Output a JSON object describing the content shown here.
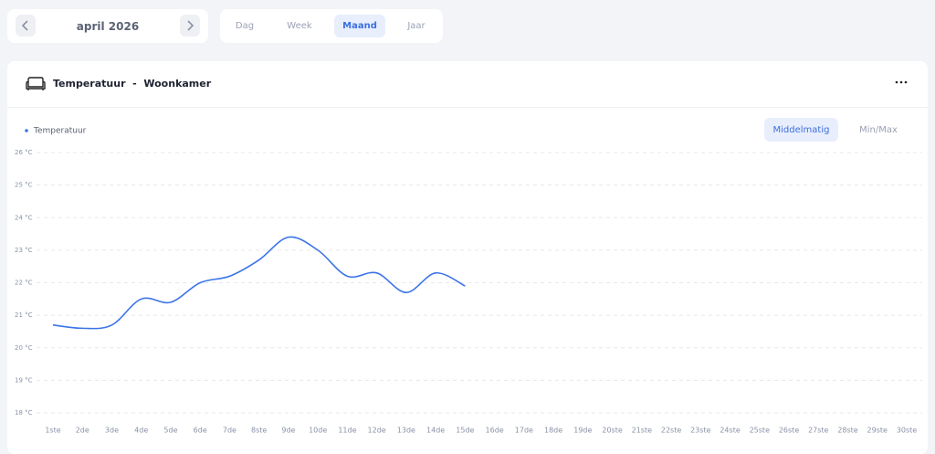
{
  "nav": {
    "month": "april 2026",
    "periods": [
      "Dag",
      "Week",
      "Maand",
      "Jaar"
    ]
  },
  "widget": {
    "title": "Temperatuur  -  Woonkamer",
    "modes": [
      "Middelmatig",
      "Min/Max"
    ]
  },
  "chart_data": {
    "type": "line",
    "categories": [
      "1ste",
      "2de",
      "3de",
      "4de",
      "5de",
      "6de",
      "7de",
      "8ste",
      "9de",
      "10de",
      "11de",
      "12de",
      "13de",
      "14de",
      "15de",
      "16de",
      "17de",
      "18de",
      "19de",
      "20ste",
      "21ste",
      "22ste",
      "23ste",
      "24ste",
      "25ste",
      "26ste",
      "27ste",
      "28ste",
      "29ste",
      "30ste"
    ],
    "series": [
      {
        "name": "Temperatuur",
        "color": "#3b74e8",
        "values": [
          20.7,
          20.6,
          20.7,
          21.5,
          21.4,
          22.0,
          22.2,
          22.7,
          23.4,
          23.0,
          22.2,
          22.3,
          21.7,
          22.3,
          21.9,
          null,
          null,
          null,
          null,
          null,
          null,
          null,
          null,
          null,
          null,
          null,
          null,
          null,
          null,
          null
        ]
      }
    ],
    "ylim": [
      18,
      26
    ],
    "yticks": [
      {
        "value": 18,
        "label": "18 °C"
      },
      {
        "value": 19,
        "label": "19 °C"
      },
      {
        "value": 20,
        "label": "20 °C"
      },
      {
        "value": 21,
        "label": "21 °C"
      },
      {
        "value": 22,
        "label": "22 °C"
      },
      {
        "value": 23,
        "label": "23 °C"
      },
      {
        "value": 24,
        "label": "24 °C"
      },
      {
        "value": 25,
        "label": "25 °C"
      },
      {
        "value": 26,
        "label": "26 °C"
      }
    ],
    "grid": true
  }
}
